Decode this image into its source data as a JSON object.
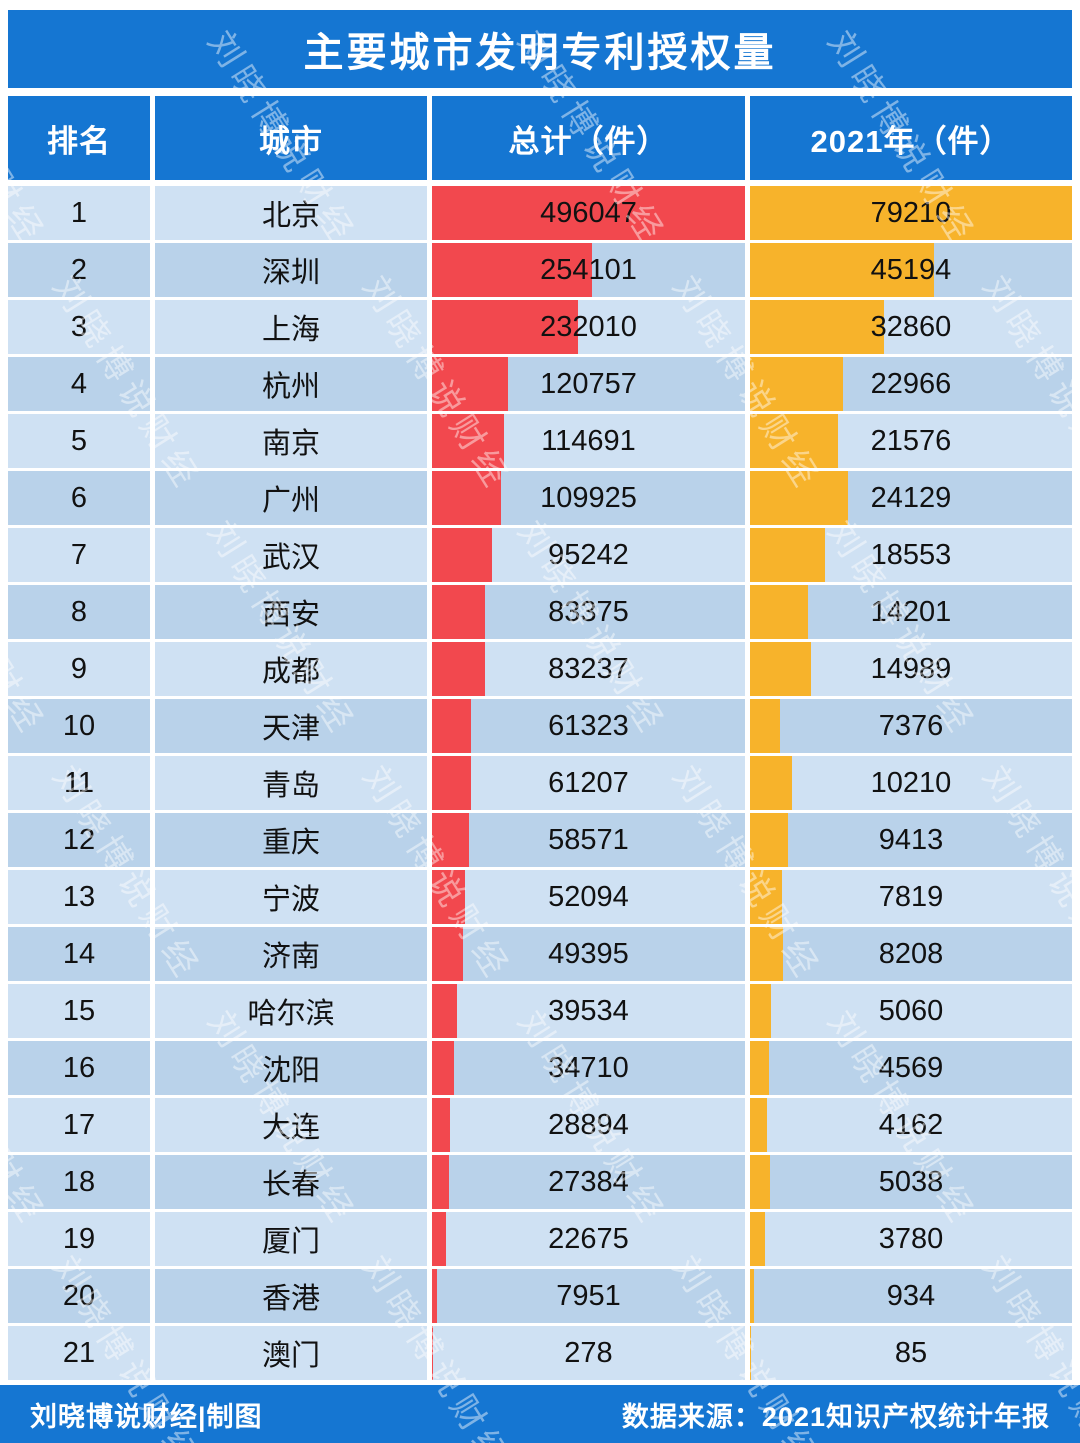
{
  "title": "主要城市发明专利授权量",
  "table": {
    "columns": [
      "排名",
      "城市",
      "总计（件）",
      "2021年（件）"
    ],
    "rows": [
      {
        "rank": 1,
        "city": "北京",
        "total": 496047,
        "y2021": 79210
      },
      {
        "rank": 2,
        "city": "深圳",
        "total": 254101,
        "y2021": 45194
      },
      {
        "rank": 3,
        "city": "上海",
        "total": 232010,
        "y2021": 32860
      },
      {
        "rank": 4,
        "city": "杭州",
        "total": 120757,
        "y2021": 22966
      },
      {
        "rank": 5,
        "city": "南京",
        "total": 114691,
        "y2021": 21576
      },
      {
        "rank": 6,
        "city": "广州",
        "total": 109925,
        "y2021": 24129
      },
      {
        "rank": 7,
        "city": "武汉",
        "total": 95242,
        "y2021": 18553
      },
      {
        "rank": 8,
        "city": "西安",
        "total": 83375,
        "y2021": 14201
      },
      {
        "rank": 9,
        "city": "成都",
        "total": 83237,
        "y2021": 14989
      },
      {
        "rank": 10,
        "city": "天津",
        "total": 61323,
        "y2021": 7376
      },
      {
        "rank": 11,
        "city": "青岛",
        "total": 61207,
        "y2021": 10210
      },
      {
        "rank": 12,
        "city": "重庆",
        "total": 58571,
        "y2021": 9413
      },
      {
        "rank": 13,
        "city": "宁波",
        "total": 52094,
        "y2021": 7819
      },
      {
        "rank": 14,
        "city": "济南",
        "total": 49395,
        "y2021": 8208
      },
      {
        "rank": 15,
        "city": "哈尔滨",
        "total": 39534,
        "y2021": 5060
      },
      {
        "rank": 16,
        "city": "沈阳",
        "total": 34710,
        "y2021": 4569
      },
      {
        "rank": 17,
        "city": "大连",
        "total": 28894,
        "y2021": 4162
      },
      {
        "rank": 18,
        "city": "长春",
        "total": 27384,
        "y2021": 5038
      },
      {
        "rank": 19,
        "city": "厦门",
        "total": 22675,
        "y2021": 3780
      },
      {
        "rank": 20,
        "city": "香港",
        "total": 7951,
        "y2021": 934
      },
      {
        "rank": 21,
        "city": "澳门",
        "total": 278,
        "y2021": 85
      }
    ]
  },
  "footer": {
    "left": "刘晓博说财经|制图",
    "right": "数据来源：2021知识产权统计年报"
  },
  "watermark": "刘晓博说财经",
  "colors": {
    "header_blue": "#1576d2",
    "bar_red": "#f2484e",
    "bar_orange": "#f7b32b",
    "row_light": "#cfe1f3",
    "row_dark": "#b9d2ea"
  },
  "chart_data": {
    "type": "bar",
    "title": "主要城市发明专利授权量",
    "categories": [
      "北京",
      "深圳",
      "上海",
      "杭州",
      "南京",
      "广州",
      "武汉",
      "西安",
      "成都",
      "天津",
      "青岛",
      "重庆",
      "宁波",
      "济南",
      "哈尔滨",
      "沈阳",
      "大连",
      "长春",
      "厦门",
      "香港",
      "澳门"
    ],
    "series": [
      {
        "name": "总计（件）",
        "values": [
          496047,
          254101,
          232010,
          120757,
          114691,
          109925,
          95242,
          83375,
          83237,
          61323,
          61207,
          58571,
          52094,
          49395,
          39534,
          34710,
          28894,
          27384,
          22675,
          7951,
          278
        ]
      },
      {
        "name": "2021年（件）",
        "values": [
          79210,
          45194,
          32860,
          22966,
          21576,
          24129,
          18553,
          14201,
          14989,
          7376,
          10210,
          9413,
          7819,
          8208,
          5060,
          4569,
          4162,
          5038,
          3780,
          934,
          85
        ]
      }
    ],
    "xlabel": "",
    "ylabel": "",
    "legend_position": "table-columns",
    "source": "数据来源：2021知识产权统计年报"
  }
}
